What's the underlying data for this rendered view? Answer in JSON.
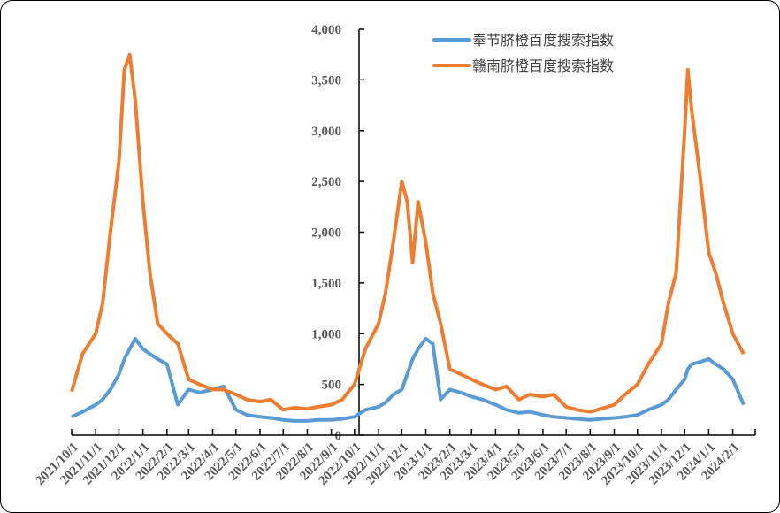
{
  "chart_data": {
    "type": "line",
    "title": "",
    "xlabel": "",
    "ylabel": "",
    "ylim": [
      0,
      4000
    ],
    "yticks": [
      "0",
      "500",
      "1,000",
      "1,500",
      "2,000",
      "2,500",
      "3,000",
      "3,500",
      "4,000"
    ],
    "xticks": [
      "2021/10/1",
      "2021/11/1",
      "2021/12/1",
      "2022/1/1",
      "2022/2/1",
      "2022/3/1",
      "2022/4/1",
      "2022/5/1",
      "2022/6/1",
      "2022/7/1",
      "2022/8/1",
      "2022/9/1",
      "2022/10/1",
      "2022/11/1",
      "2022/12/1",
      "2023/1/1",
      "2023/2/1",
      "2023/3/1",
      "2023/4/1",
      "2023/5/1",
      "2023/6/1",
      "2023/7/1",
      "2023/8/1",
      "2023/9/1",
      "2023/10/1",
      "2023/11/1",
      "2023/12/1",
      "2024/1/1",
      "2024/2/1"
    ],
    "grid": false,
    "legend": "top-right",
    "x": [
      "2021/10/1",
      "2021/10/15",
      "2021/11/1",
      "2021/11/10",
      "2021/11/20",
      "2021/12/1",
      "2021/12/8",
      "2021/12/15",
      "2021/12/22",
      "2022/1/1",
      "2022/1/10",
      "2022/1/20",
      "2022/2/1",
      "2022/2/15",
      "2022/3/1",
      "2022/3/15",
      "2022/4/1",
      "2022/4/15",
      "2022/5/1",
      "2022/5/15",
      "2022/6/1",
      "2022/6/15",
      "2022/7/1",
      "2022/7/15",
      "2022/8/1",
      "2022/8/15",
      "2022/9/1",
      "2022/9/15",
      "2022/10/1",
      "2022/10/15",
      "2022/11/1",
      "2022/11/10",
      "2022/11/20",
      "2022/12/1",
      "2022/12/8",
      "2022/12/15",
      "2022/12/22",
      "2023/1/1",
      "2023/1/10",
      "2023/1/20",
      "2023/2/1",
      "2023/2/15",
      "2023/3/1",
      "2023/3/15",
      "2023/4/1",
      "2023/4/15",
      "2023/5/1",
      "2023/5/15",
      "2023/6/1",
      "2023/6/15",
      "2023/7/1",
      "2023/7/15",
      "2023/8/1",
      "2023/8/15",
      "2023/9/1",
      "2023/9/15",
      "2023/10/1",
      "2023/10/15",
      "2023/11/1",
      "2023/11/10",
      "2023/11/20",
      "2023/12/1",
      "2023/12/5",
      "2023/12/10",
      "2023/12/20",
      "2024/1/1",
      "2024/1/10",
      "2024/1/20",
      "2024/2/1",
      "2024/2/15"
    ],
    "series": [
      {
        "name": "奉节脐橙百度搜索指数",
        "color": "#5B9BD5",
        "values": [
          180,
          230,
          300,
          350,
          450,
          600,
          750,
          850,
          950,
          850,
          800,
          750,
          700,
          300,
          450,
          420,
          450,
          480,
          250,
          200,
          180,
          170,
          150,
          140,
          140,
          150,
          150,
          160,
          180,
          250,
          280,
          320,
          400,
          450,
          600,
          750,
          850,
          950,
          900,
          350,
          450,
          420,
          380,
          350,
          300,
          250,
          220,
          230,
          200,
          180,
          170,
          160,
          150,
          160,
          170,
          180,
          200,
          250,
          300,
          350,
          450,
          550,
          650,
          700,
          720,
          750,
          700,
          650,
          550,
          300
        ]
      },
      {
        "name": "赣南脐橙百度搜索指数",
        "color": "#ED7D31",
        "values": [
          430,
          800,
          1000,
          1300,
          2000,
          2700,
          3600,
          3750,
          3300,
          2300,
          1600,
          1100,
          1000,
          900,
          550,
          500,
          450,
          450,
          400,
          350,
          330,
          350,
          250,
          270,
          260,
          280,
          300,
          350,
          500,
          850,
          1100,
          1400,
          1900,
          2500,
          2300,
          1700,
          2300,
          1900,
          1400,
          1100,
          650,
          600,
          550,
          500,
          450,
          480,
          350,
          400,
          380,
          400,
          280,
          250,
          230,
          260,
          300,
          400,
          500,
          700,
          900,
          1300,
          1600,
          3000,
          3600,
          3200,
          2600,
          1800,
          1600,
          1300,
          1000,
          800
        ]
      }
    ]
  }
}
